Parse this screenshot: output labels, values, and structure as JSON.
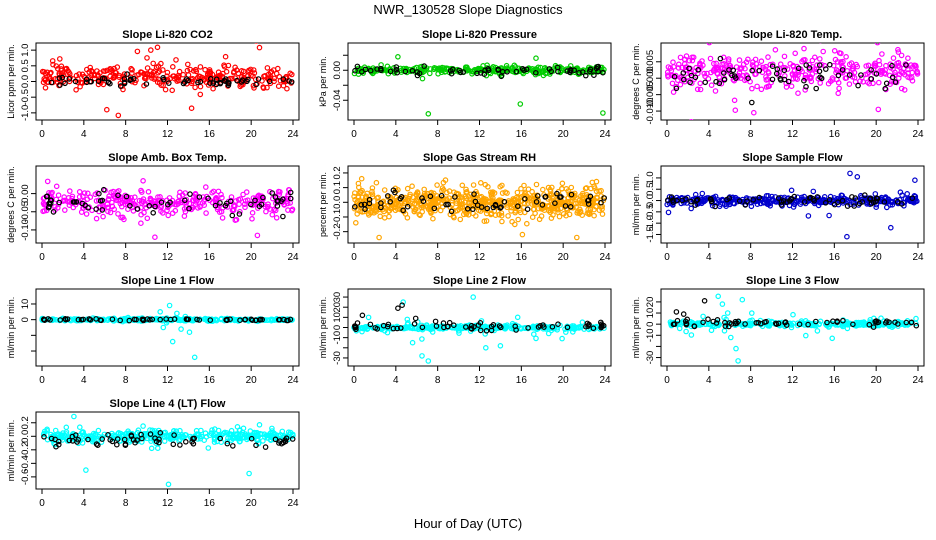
{
  "figure": {
    "title": "NWR_130528  Slope Diagnostics",
    "xlabel": "Hour of Day (UTC)"
  },
  "chart_data": [
    {
      "type": "scatter",
      "title": "Slope Li-820 CO2",
      "ylabel": "Licor ppm per min.",
      "xlim": [
        0,
        24
      ],
      "ylim": [
        -1.1,
        1.1
      ],
      "xticks": [
        0,
        4,
        8,
        12,
        16,
        20,
        24
      ],
      "yticks": [
        -1.0,
        -0.5,
        0.0,
        0.5,
        1.0
      ],
      "ytick_labels": [
        "-1.0",
        "-0.5",
        "0.0",
        "0.5",
        "1.0"
      ],
      "series": [
        {
          "color": "#ff0000",
          "n": 320,
          "center": 0.15,
          "spread": 0.28,
          "tail": 0.06,
          "tail_spread": 0.9,
          "outliers": [
            [
              1.7,
              0.72
            ],
            [
              10.4,
              1.0
            ],
            [
              20.8,
              1.08
            ],
            [
              6.2,
              -0.9
            ],
            [
              14.3,
              -0.85
            ],
            [
              7.3,
              -1.08
            ]
          ]
        },
        {
          "color": "#000000",
          "n": 60,
          "center": 0.0,
          "spread": 0.12,
          "tail": 0.0,
          "tail_spread": 0,
          "outliers": []
        }
      ]
    },
    {
      "type": "scatter",
      "title": "Slope Li-820 Pressure",
      "ylabel": "kPa per min.",
      "xlim": [
        0,
        24
      ],
      "ylim": [
        -0.061,
        0.031
      ],
      "xticks": [
        0,
        4,
        8,
        12,
        16,
        20,
        24
      ],
      "yticks": [
        -0.04,
        -0.02,
        0.0,
        0.02
      ],
      "ytick_labels": [
        "-0.04",
        "",
        "0.00",
        ""
      ],
      "series": [
        {
          "color": "#00cc00",
          "n": 300,
          "center": 0.0,
          "spread": 0.004,
          "tail": 0.04,
          "tail_spread": 0.012,
          "outliers": [
            [
              7.1,
              -0.058
            ],
            [
              15.9,
              -0.045
            ],
            [
              23.8,
              -0.057
            ],
            [
              4.2,
              0.018
            ],
            [
              17.4,
              0.016
            ]
          ]
        },
        {
          "color": "#000000",
          "n": 60,
          "center": 0.0,
          "spread": 0.004,
          "tail": 0.0,
          "tail_spread": 0,
          "outliers": []
        }
      ]
    },
    {
      "type": "scatter",
      "title": "Slope Li-820 Temp.",
      "ylabel": "degrees C per min.",
      "xlim": [
        0,
        24
      ],
      "ylim": [
        -0.0115,
        0.0095
      ],
      "xticks": [
        0,
        4,
        8,
        12,
        16,
        20,
        24
      ],
      "yticks": [
        -0.01,
        -0.005,
        0.0,
        0.005
      ],
      "ytick_labels": [
        "-0.010",
        "-0.005",
        "0.000",
        "0.005"
      ],
      "series": [
        {
          "color": "#ff00ff",
          "n": 340,
          "center": 0.002,
          "spread": 0.0045,
          "tail": 0.05,
          "tail_spread": 0.009,
          "outliers": [
            [
              8.3,
              -0.0105
            ],
            [
              20.2,
              -0.0095
            ],
            [
              13.1,
              0.009
            ]
          ]
        },
        {
          "color": "#000000",
          "n": 60,
          "center": 0.0005,
          "spread": 0.0035,
          "tail": 0.0,
          "tail_spread": 0,
          "outliers": []
        }
      ]
    },
    {
      "type": "scatter",
      "title": "Slope Amb. Box Temp.",
      "ylabel": "degrees C per min.",
      "xlim": [
        0,
        24
      ],
      "ylim": [
        -0.125,
        0.065
      ],
      "xticks": [
        0,
        4,
        8,
        12,
        16,
        20,
        24
      ],
      "yticks": [
        -0.1,
        -0.05,
        0.0
      ],
      "ytick_labels": [
        "-0.10",
        "-0.05",
        "0.00"
      ],
      "series": [
        {
          "color": "#ff00ff",
          "n": 340,
          "center": -0.025,
          "spread": 0.03,
          "tail": 0.04,
          "tail_spread": 0.06,
          "outliers": [
            [
              10.8,
              -0.12
            ],
            [
              20.6,
              -0.115
            ]
          ]
        },
        {
          "color": "#000000",
          "n": 60,
          "center": -0.03,
          "spread": 0.025,
          "tail": 0.0,
          "tail_spread": 0,
          "outliers": []
        }
      ]
    },
    {
      "type": "scatter",
      "title": "Slope Gas Stream RH",
      "ylabel": "percent per min.",
      "xlim": [
        0,
        24
      ],
      "ylim": [
        -0.25,
        0.22
      ],
      "xticks": [
        0,
        4,
        8,
        12,
        16,
        20,
        24
      ],
      "yticks": [
        -0.2,
        -0.1,
        0.0,
        0.1,
        0.2
      ],
      "ytick_labels": [
        "-0.2",
        "-0.1",
        "0.0",
        "0.1",
        "0.2"
      ],
      "series": [
        {
          "color": "#ffa500",
          "n": 620,
          "center": 0.0,
          "spread": 0.09,
          "tail": 0.0,
          "tail_spread": 0,
          "outliers": [
            [
              2.4,
              -0.24
            ],
            [
              16.1,
              -0.22
            ],
            [
              21.3,
              -0.24
            ]
          ]
        },
        {
          "color": "#000000",
          "n": 60,
          "center": 0.0,
          "spread": 0.06,
          "tail": 0.0,
          "tail_spread": 0,
          "outliers": []
        }
      ]
    },
    {
      "type": "scatter",
      "title": "Slope Sample Flow",
      "ylabel": "ml/min per min.",
      "xlim": [
        0,
        24
      ],
      "ylim": [
        -1.7,
        1.35
      ],
      "xticks": [
        0,
        4,
        8,
        12,
        16,
        20,
        24
      ],
      "yticks": [
        -1.5,
        -1.0,
        -0.5,
        0.0,
        0.5,
        1.0
      ],
      "ytick_labels": [
        "-1.5",
        "-1.0",
        "-0.5",
        "0.0",
        "0.5",
        "1.0"
      ],
      "series": [
        {
          "color": "#0000cc",
          "n": 360,
          "center": 0.0,
          "spread": 0.15,
          "tail": 0.08,
          "tail_spread": 0.6,
          "outliers": [
            [
              17.5,
              1.2
            ],
            [
              18.2,
              1.05
            ],
            [
              17.2,
              -1.6
            ],
            [
              21.4,
              -1.2
            ],
            [
              23.7,
              0.9
            ]
          ]
        },
        {
          "color": "#000000",
          "n": 60,
          "center": 0.0,
          "spread": 0.2,
          "tail": 0.0,
          "tail_spread": 0,
          "outliers": []
        }
      ]
    },
    {
      "type": "scatter",
      "title": "Slope Line 1 Flow",
      "ylabel": "ml/min per min.",
      "xlim": [
        0,
        24
      ],
      "ylim": [
        -27,
        17
      ],
      "xticks": [
        0,
        4,
        8,
        12,
        16,
        20,
        24
      ],
      "yticks": [
        -20,
        -10,
        0,
        10
      ],
      "ytick_labels": [
        "",
        "",
        "0",
        "10"
      ],
      "series": [
        {
          "color": "#00ffff",
          "n": 300,
          "center": 0.0,
          "spread": 0.7,
          "tail": 0.0,
          "tail_spread": 0,
          "outliers": [
            [
              11.3,
              5
            ],
            [
              11.6,
              -5
            ],
            [
              12.2,
              9
            ],
            [
              12.5,
              -14
            ],
            [
              12.9,
              4
            ],
            [
              13.3,
              -6
            ],
            [
              13.7,
              2
            ],
            [
              14.1,
              -8
            ],
            [
              14.6,
              -24
            ],
            [
              11.9,
              -2
            ]
          ]
        },
        {
          "color": "#000000",
          "n": 60,
          "center": 0.0,
          "spread": 0.5,
          "tail": 0.0,
          "tail_spread": 0,
          "outliers": []
        }
      ]
    },
    {
      "type": "scatter",
      "title": "Slope Line 2 Flow",
      "ylabel": "ml/min per min.",
      "xlim": [
        0,
        24
      ],
      "ylim": [
        -34,
        34
      ],
      "xticks": [
        0,
        4,
        8,
        12,
        16,
        20,
        24
      ],
      "yticks": [
        -30,
        -20,
        -10,
        0,
        10,
        20,
        30
      ],
      "ytick_labels": [
        "-30",
        "",
        "-10",
        "0",
        "10",
        "20",
        "30"
      ],
      "series": [
        {
          "color": "#00ffff",
          "n": 300,
          "center": 0.0,
          "spread": 1.5,
          "tail": 0.12,
          "tail_spread": 9,
          "outliers": [
            [
              4.7,
              25
            ],
            [
              5.1,
              8
            ],
            [
              5.6,
              -15
            ],
            [
              6.5,
              -28
            ],
            [
              7.1,
              -33
            ],
            [
              11.4,
              30
            ],
            [
              12.6,
              -20
            ],
            [
              14.0,
              -18
            ],
            [
              3.2,
              -5
            ],
            [
              1.4,
              10
            ]
          ]
        },
        {
          "color": "#000000",
          "n": 60,
          "center": 1.0,
          "spread": 3.0,
          "tail": 0.0,
          "tail_spread": 0,
          "outliers": [
            [
              4.2,
              19
            ],
            [
              4.6,
              22
            ],
            [
              0.8,
              12
            ],
            [
              5.9,
              9
            ],
            [
              7.8,
              6
            ]
          ]
        }
      ]
    },
    {
      "type": "scatter",
      "title": "Slope Line 3 Flow",
      "ylabel": "ml/min per min.",
      "xlim": [
        0,
        24
      ],
      "ylim": [
        -34,
        28
      ],
      "xticks": [
        0,
        4,
        8,
        12,
        16,
        20,
        24
      ],
      "yticks": [
        -30,
        -20,
        -10,
        0,
        10,
        20
      ],
      "ytick_labels": [
        "-30",
        "",
        "-10",
        "0",
        "10",
        "20"
      ],
      "series": [
        {
          "color": "#00ffff",
          "n": 300,
          "center": 0.0,
          "spread": 1.8,
          "tail": 0.1,
          "tail_spread": 7,
          "outliers": [
            [
              4.9,
              25
            ],
            [
              5.3,
              18
            ],
            [
              5.8,
              10
            ],
            [
              6.1,
              -12
            ],
            [
              6.6,
              -22
            ],
            [
              6.8,
              -33
            ],
            [
              7.2,
              22
            ],
            [
              5.5,
              -6
            ]
          ]
        },
        {
          "color": "#000000",
          "n": 60,
          "center": 1.0,
          "spread": 2.5,
          "tail": 0.0,
          "tail_spread": 0,
          "outliers": [
            [
              3.6,
              21
            ],
            [
              0.9,
              11
            ],
            [
              1.6,
              9
            ]
          ]
        }
      ]
    },
    {
      "type": "scatter",
      "title": "Slope Line 4 (LT) Flow",
      "ylabel": "ml/min per min.",
      "xlim": [
        0,
        24
      ],
      "ylim": [
        -0.72,
        0.3
      ],
      "xticks": [
        0,
        4,
        8,
        12,
        16,
        20,
        24
      ],
      "yticks": [
        -0.6,
        -0.4,
        -0.2,
        0.0,
        0.2
      ],
      "ytick_labels": [
        "-0.6",
        "-0.4",
        "-0.2",
        "0.0",
        "0.2"
      ],
      "series": [
        {
          "color": "#00ffff",
          "n": 360,
          "center": 0.0,
          "spread": 0.08,
          "tail": 0.05,
          "tail_spread": 0.22,
          "outliers": [
            [
              4.2,
              -0.5
            ],
            [
              12.1,
              -0.71
            ],
            [
              19.8,
              -0.55
            ]
          ]
        },
        {
          "color": "#000000",
          "n": 60,
          "center": -0.05,
          "spread": 0.1,
          "tail": 0.0,
          "tail_spread": 0,
          "outliers": []
        }
      ]
    }
  ]
}
